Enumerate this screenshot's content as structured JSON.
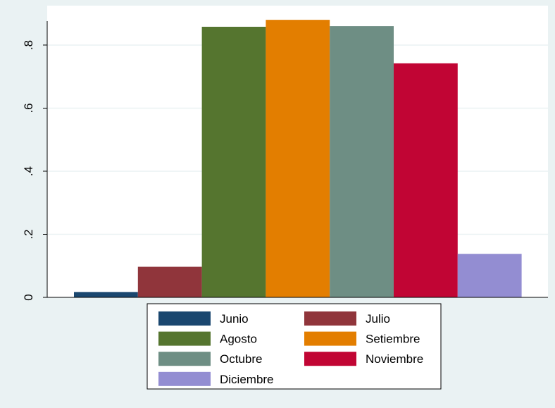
{
  "chart_data": {
    "type": "bar",
    "categories": [
      ""
    ],
    "series": [
      {
        "name": "Junio",
        "values": [
          0.017
        ],
        "color": "#1a476f"
      },
      {
        "name": "Julio",
        "values": [
          0.097
        ],
        "color": "#90353b"
      },
      {
        "name": "Agosto",
        "values": [
          0.858
        ],
        "color": "#55752f"
      },
      {
        "name": "Setiembre",
        "values": [
          0.88
        ],
        "color": "#e37e00"
      },
      {
        "name": "Octubre",
        "values": [
          0.86
        ],
        "color": "#6e8e84"
      },
      {
        "name": "Noviembre",
        "values": [
          0.742
        ],
        "color": "#c10534"
      },
      {
        "name": "Diciembre",
        "values": [
          0.138
        ],
        "color": "#938dd2"
      }
    ],
    "yticks": [
      {
        "value": 0,
        "label": "0"
      },
      {
        "value": 0.2,
        "label": ".2"
      },
      {
        "value": 0.4,
        "label": ".4"
      },
      {
        "value": 0.6,
        "label": ".6"
      },
      {
        "value": 0.8,
        "label": ".8"
      }
    ],
    "ylim": [
      0,
      0.925
    ],
    "grid": true,
    "legend_position": "bottom",
    "title": "",
    "xlabel": "",
    "ylabel": "",
    "colors": {
      "background": "#eaf2f3",
      "plot_area": "#ffffff",
      "grid": "#eaf2f3",
      "axis": "#000000"
    }
  }
}
